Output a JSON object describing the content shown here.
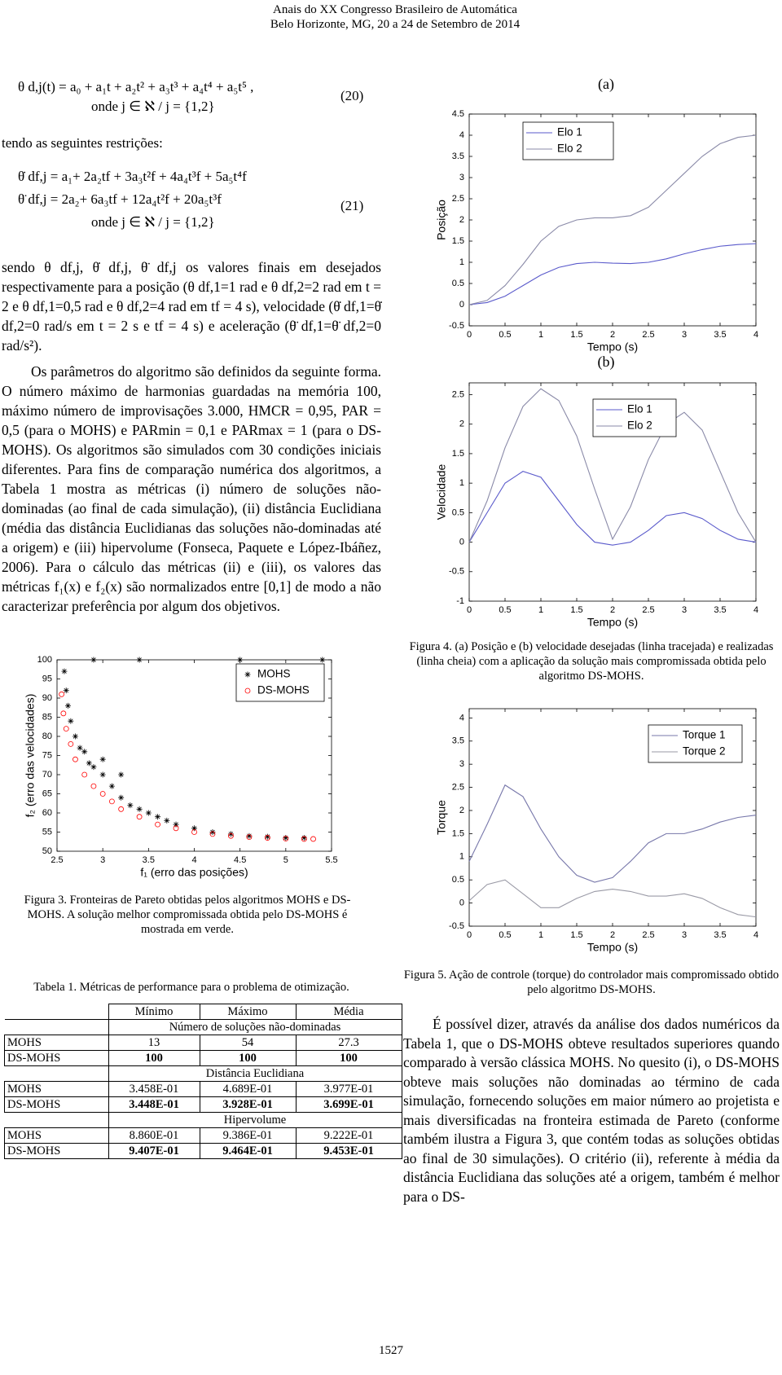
{
  "header": {
    "line1": "Anais do XX Congresso Brasileiro de Automática",
    "line2": "Belo Horizonte, MG, 20 a 24 de Setembro de 2014"
  },
  "left": {
    "eq20": {
      "line1": "θ d,j(t) = a₀ + a₁t + a₂t² + a₃t³ + a₄t⁴ + a₅t⁵ ,",
      "line2": "onde j ∈ ℵ / j = {1,2}",
      "number": "(20)"
    },
    "restrictions": "tendo as seguintes restrições:",
    "eq21": {
      "line1": "θ̇ df,j = a₁+ 2a₂tf + 3a₃t²f + 4a₄t³f + 5a₅t⁴f",
      "line2": "θ̈ df,j = 2a₂+ 6a₃tf + 12a₄t²f + 20a₅t³f",
      "line3": "onde j ∈ ℵ / j = {1,2}",
      "number": "(21)"
    },
    "paragraph1": "sendo θ df,j, θ̇ df,j, θ̈ df,j os valores finais em desejados respectivamente para a posição (θ df,1=1 rad e θ df,2=2 rad em t = 2 e θ df,1=0,5 rad e θ df,2=4 rad em tf = 4 s), velocidade (θ̇ df,1=θ̇ df,2=0 rad/s em t = 2 s e tf = 4 s) e aceleração (θ̈ df,1=θ̈ df,2=0 rad/s²).",
    "paragraph2": "Os parâmetros do algoritmo são definidos da seguinte forma. O número máximo de harmonias guardadas na memória 100, máximo número de improvisações 3.000, HMCR = 0,95, PAR = 0,5 (para o MOHS) e PARmin = 0,1 e PARmax = 1 (para o DS-MOHS). Os algoritmos são simulados com 30 condições iniciais diferentes. Para fins de comparação numérica dos algoritmos, a Tabela 1 mostra as métricas (i) número de soluções não-dominadas (ao final de cada simulação), (ii) distância Euclidiana (média das distância Euclidianas das soluções não-dominadas até a origem) e (iii) hipervolume (Fonseca, Paquete e López-Ibáñez, 2006). Para o cálculo das métricas (ii) e (iii), os valores das métricas f₁(x) e f₂(x) são normalizados entre [0,1] de modo a não caracterizar preferência por algum dos objetivos."
  },
  "table": {
    "caption": "Tabela 1. Métricas de performance para o problema de otimização.",
    "header": [
      "Mínimo",
      "Máximo",
      "Média"
    ],
    "sections": [
      {
        "title": "Número de soluções não-dominadas",
        "rows": [
          {
            "name": "MOHS",
            "values": [
              "13",
              "54",
              "27.3"
            ],
            "bold": false
          },
          {
            "name": "DS-MOHS",
            "values": [
              "100",
              "100",
              "100"
            ],
            "bold": true
          }
        ]
      },
      {
        "title": "Distância Euclidiana",
        "rows": [
          {
            "name": "MOHS",
            "values": [
              "3.458E-01",
              "4.689E-01",
              "3.977E-01"
            ],
            "bold": false
          },
          {
            "name": "DS-MOHS",
            "values": [
              "3.448E-01",
              "3.928E-01",
              "3.699E-01"
            ],
            "bold": true
          }
        ]
      },
      {
        "title": "Hipervolume",
        "rows": [
          {
            "name": "MOHS",
            "values": [
              "8.860E-01",
              "9.386E-01",
              "9.222E-01"
            ],
            "bold": false
          },
          {
            "name": "DS-MOHS",
            "values": [
              "9.407E-01",
              "9.464E-01",
              "9.453E-01"
            ],
            "bold": true
          }
        ]
      }
    ]
  },
  "right": {
    "paragraph": "É possível dizer, através da análise dos dados numéricos da Tabela 1, que o DS-MOHS obteve resultados superiores quando comparado à versão clássica MOHS. No quesito (i), o DS-MOHS obteve mais soluções não dominadas ao término de cada simulação, fornecendo soluções em maior número ao projetista e mais diversificadas na fronteira estimada de Pareto (conforme também ilustra a Figura 3, que contém todas as soluções obtidas ao final de 30 simulações). O critério (ii), referente à média da distância Euclidiana das soluções até a origem, também é melhor para o DS-"
  },
  "page_number": "1527",
  "chart_data": [
    {
      "type": "scatter",
      "caption": "Figura 3. Fronteiras de Pareto obtidas pelos algoritmos MOHS e DS-MOHS. A solução melhor compromissada obtida pelo DS-MOHS é mostrada em verde.",
      "xlabel": "f₁ (erro das posições)",
      "ylabel": "f₂ (erro das velocidades)",
      "xlim": [
        2.5,
        5.5
      ],
      "ylim": [
        50,
        100
      ],
      "xticks": [
        2.5,
        3,
        3.5,
        4,
        4.5,
        5,
        5.5
      ],
      "yticks": [
        50,
        55,
        60,
        65,
        70,
        75,
        80,
        85,
        90,
        95,
        100
      ],
      "series": [
        {
          "name": "MOHS",
          "color": "#000000",
          "marker": "star",
          "x": [
            2.58,
            2.6,
            2.62,
            2.65,
            2.7,
            2.75,
            2.8,
            2.85,
            2.9,
            3.0,
            3.1,
            3.2,
            3.3,
            3.4,
            3.5,
            3.6,
            3.7,
            3.8,
            4.0,
            4.2,
            4.4,
            4.6,
            4.8,
            5.0,
            5.2,
            2.9,
            3.4,
            4.5,
            5.4,
            3.2,
            3.0
          ],
          "y": [
            97,
            92,
            88,
            84,
            80,
            77,
            76,
            73,
            72,
            70,
            67,
            64,
            62,
            61,
            60,
            59,
            58,
            57,
            56,
            55,
            54.5,
            54,
            53.8,
            53.5,
            53.5,
            100,
            100,
            100,
            100,
            70,
            74
          ]
        },
        {
          "name": "DS-MOHS",
          "color": "#ff0000",
          "marker": "circle",
          "x": [
            2.55,
            2.57,
            2.6,
            2.65,
            2.7,
            2.8,
            2.9,
            3.0,
            3.1,
            3.2,
            3.4,
            3.6,
            3.8,
            4.0,
            4.2,
            4.4,
            4.6,
            4.8,
            5.0,
            5.2,
            5.3
          ],
          "y": [
            91,
            86,
            82,
            78,
            74,
            70,
            67,
            65,
            63,
            61,
            59,
            57,
            56,
            55,
            54.5,
            54,
            53.7,
            53.5,
            53.3,
            53.2,
            53.2
          ]
        }
      ]
    },
    {
      "type": "line",
      "label": "(a)",
      "xlabel": "Tempo (s)",
      "ylabel": "Posição",
      "xlim": [
        0,
        4
      ],
      "ylim": [
        -0.5,
        4.5
      ],
      "xticks": [
        0,
        0.5,
        1,
        1.5,
        2,
        2.5,
        3,
        3.5,
        4
      ],
      "yticks": [
        -0.5,
        0,
        0.5,
        1,
        1.5,
        2,
        2.5,
        3,
        3.5,
        4,
        4.5
      ],
      "x": [
        0,
        0.25,
        0.5,
        0.75,
        1,
        1.25,
        1.5,
        1.75,
        2,
        2.25,
        2.5,
        2.75,
        3,
        3.25,
        3.5,
        3.75,
        4
      ],
      "series": [
        {
          "name": "Elo 1",
          "color": "#5a5acb",
          "values": [
            0,
            0.05,
            0.2,
            0.45,
            0.7,
            0.88,
            0.97,
            1.0,
            0.98,
            0.97,
            1.0,
            1.08,
            1.2,
            1.3,
            1.38,
            1.42,
            1.44
          ]
        },
        {
          "name": "Elo 2",
          "color": "#8a8aa8",
          "values": [
            0,
            0.1,
            0.45,
            0.95,
            1.5,
            1.85,
            2.0,
            2.05,
            2.05,
            2.1,
            2.3,
            2.7,
            3.1,
            3.5,
            3.8,
            3.95,
            4.0
          ]
        }
      ]
    },
    {
      "type": "line",
      "label": "(b)",
      "caption": "Figura 4. (a) Posição e (b) velocidade desejadas (linha tracejada) e realizadas (linha cheia) com a aplicação da solução mais compromissada obtida pelo algoritmo DS-MOHS.",
      "xlabel": "Tempo (s)",
      "ylabel": "Velocidade",
      "xlim": [
        0,
        4
      ],
      "ylim": [
        -1,
        2.7
      ],
      "xticks": [
        0,
        0.5,
        1,
        1.5,
        2,
        2.5,
        3,
        3.5,
        4
      ],
      "yticks": [
        -1,
        -0.5,
        0,
        0.5,
        1,
        1.5,
        2,
        2.5
      ],
      "x": [
        0,
        0.25,
        0.5,
        0.75,
        1,
        1.25,
        1.5,
        1.75,
        2,
        2.25,
        2.5,
        2.75,
        3,
        3.25,
        3.5,
        3.75,
        4
      ],
      "series": [
        {
          "name": "Elo 1",
          "color": "#5a5acb",
          "values": [
            0,
            0.5,
            1.0,
            1.2,
            1.1,
            0.7,
            0.3,
            0.0,
            -0.05,
            0.0,
            0.2,
            0.45,
            0.5,
            0.4,
            0.2,
            0.05,
            0
          ]
        },
        {
          "name": "Elo 2",
          "color": "#8a8aa8",
          "values": [
            0,
            0.7,
            1.6,
            2.3,
            2.6,
            2.4,
            1.8,
            0.9,
            0.05,
            0.6,
            1.4,
            2.0,
            2.2,
            1.9,
            1.2,
            0.5,
            0
          ]
        }
      ]
    },
    {
      "type": "line",
      "caption": "Figura 5. Ação de controle (torque) do controlador mais compromissado obtido pelo algoritmo DS-MOHS.",
      "xlabel": "Tempo (s)",
      "ylabel": "Torque",
      "xlim": [
        0,
        4
      ],
      "ylim": [
        -0.5,
        4.2
      ],
      "xticks": [
        0,
        0.5,
        1,
        1.5,
        2,
        2.5,
        3,
        3.5,
        4
      ],
      "yticks": [
        -0.5,
        0,
        0.5,
        1,
        1.5,
        2,
        2.5,
        3,
        3.5,
        4
      ],
      "x": [
        0,
        0.25,
        0.5,
        0.75,
        1,
        1.25,
        1.5,
        1.75,
        2,
        2.25,
        2.5,
        2.75,
        3,
        3.25,
        3.5,
        3.75,
        4
      ],
      "series": [
        {
          "name": "Torque 1",
          "color": "#7777aa",
          "values": [
            0.9,
            1.7,
            2.55,
            2.3,
            1.6,
            1.0,
            0.6,
            0.45,
            0.55,
            0.9,
            1.3,
            1.5,
            1.5,
            1.6,
            1.75,
            1.85,
            1.9
          ]
        },
        {
          "name": "Torque 2",
          "color": "#9a9aa6",
          "values": [
            0.05,
            0.4,
            0.5,
            0.2,
            -0.1,
            -0.1,
            0.1,
            0.25,
            0.3,
            0.25,
            0.15,
            0.15,
            0.2,
            0.1,
            -0.1,
            -0.25,
            -0.3
          ]
        }
      ]
    }
  ]
}
